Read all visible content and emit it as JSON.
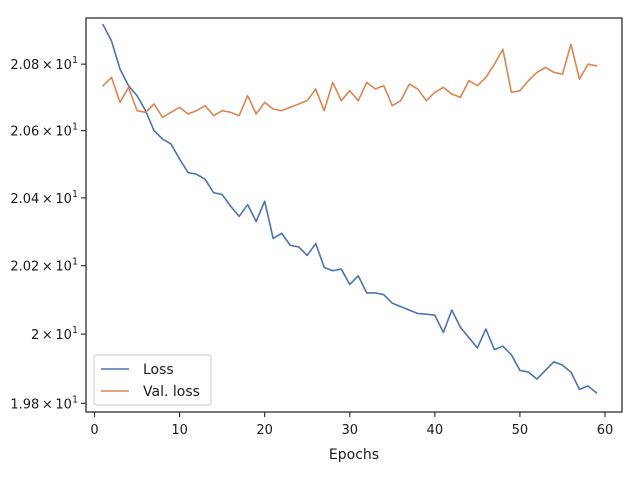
{
  "chart_data": {
    "type": "line",
    "title": "",
    "xlabel": "Epochs",
    "ylabel": "",
    "xlim": [
      -1,
      62
    ],
    "ylim": [
      19.775,
      20.94
    ],
    "yscale": "log",
    "grid": false,
    "legend_position": "lower-left",
    "xticks": [
      0,
      10,
      20,
      30,
      40,
      50,
      60
    ],
    "xtick_labels": [
      "0",
      "10",
      "20",
      "30",
      "40",
      "50",
      "60"
    ],
    "yticks": [
      19.8,
      20.0,
      20.2,
      20.4,
      20.6,
      20.8
    ],
    "ytick_labels": [
      {
        "mantissa": "1.98",
        "exp": "1"
      },
      {
        "mantissa": "2",
        "exp": "1"
      },
      {
        "mantissa": "2.02",
        "exp": "1"
      },
      {
        "mantissa": "2.04",
        "exp": "1"
      },
      {
        "mantissa": "2.06",
        "exp": "1"
      },
      {
        "mantissa": "2.08",
        "exp": "1"
      }
    ],
    "x": [
      1,
      2,
      3,
      4,
      5,
      6,
      7,
      8,
      9,
      10,
      11,
      12,
      13,
      14,
      15,
      16,
      17,
      18,
      19,
      20,
      21,
      22,
      23,
      24,
      25,
      26,
      27,
      28,
      29,
      30,
      31,
      32,
      33,
      34,
      35,
      36,
      37,
      38,
      39,
      40,
      41,
      42,
      43,
      44,
      45,
      46,
      47,
      48,
      49,
      50,
      51,
      52,
      53,
      54,
      55,
      56,
      57,
      58,
      59
    ],
    "series": [
      {
        "name": "Loss",
        "color": "#4c72b0",
        "values": [
          20.92,
          20.87,
          20.785,
          20.735,
          20.705,
          20.66,
          20.6,
          20.575,
          20.56,
          20.515,
          20.475,
          20.47,
          20.455,
          20.415,
          20.41,
          20.375,
          20.345,
          20.38,
          20.33,
          20.39,
          20.28,
          20.295,
          20.26,
          20.255,
          20.23,
          20.265,
          20.195,
          20.185,
          20.19,
          20.145,
          20.17,
          20.12,
          20.12,
          20.115,
          20.09,
          20.08,
          20.07,
          20.06,
          20.058,
          20.055,
          20.005,
          20.07,
          20.02,
          19.99,
          19.96,
          20.015,
          19.955,
          19.965,
          19.94,
          19.895,
          19.89,
          19.87,
          19.895,
          19.92,
          19.91,
          19.89,
          19.84,
          19.85,
          19.83
        ]
      },
      {
        "name": "Val. loss",
        "color": "#dd8452",
        "values": [
          20.735,
          20.76,
          20.685,
          20.73,
          20.66,
          20.655,
          20.68,
          20.64,
          20.655,
          20.67,
          20.65,
          20.66,
          20.675,
          20.645,
          20.66,
          20.655,
          20.645,
          20.705,
          20.65,
          20.685,
          20.665,
          20.66,
          20.67,
          20.68,
          20.69,
          20.725,
          20.66,
          20.745,
          20.69,
          20.72,
          20.69,
          20.745,
          20.725,
          20.735,
          20.675,
          20.69,
          20.74,
          20.725,
          20.69,
          20.715,
          20.73,
          20.71,
          20.7,
          20.75,
          20.735,
          20.76,
          20.8,
          20.845,
          20.715,
          20.72,
          20.75,
          20.775,
          20.79,
          20.775,
          20.77,
          20.86,
          20.755,
          20.8,
          20.795
        ]
      }
    ]
  }
}
